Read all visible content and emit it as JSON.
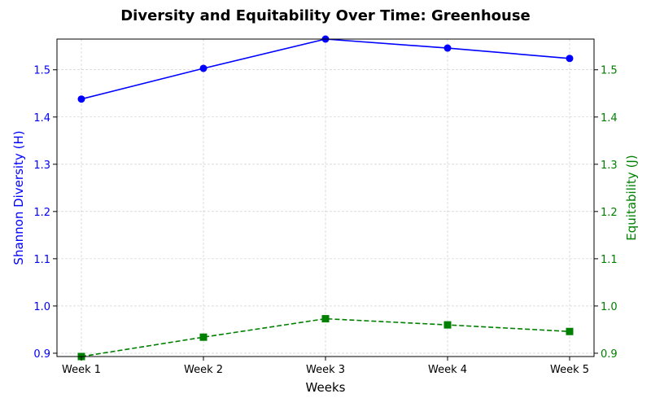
{
  "chart_data": {
    "type": "line",
    "title": "Diversity and Equitability Over Time: Greenhouse",
    "xlabel": "Weeks",
    "categories": [
      "Week 1",
      "Week 2",
      "Week 3",
      "Week 4",
      "Week 5"
    ],
    "grid": true,
    "series": [
      {
        "name": "Shannon Diversity (H)",
        "axis": "left",
        "values": [
          1.438,
          1.503,
          1.565,
          1.546,
          1.524
        ],
        "color": "#0000ff",
        "marker": "circle",
        "line_style": "solid"
      },
      {
        "name": "Equitability (J)",
        "axis": "right",
        "values": [
          0.893,
          0.934,
          0.973,
          0.96,
          0.946
        ],
        "color": "#008000",
        "marker": "square",
        "line_style": "dashed"
      }
    ],
    "y_left": {
      "label": "Shannon Diversity (H)",
      "range": [
        0.893,
        1.565
      ],
      "ticks": [
        "0.9",
        "1.0",
        "1.1",
        "1.2",
        "1.3",
        "1.4",
        "1.5"
      ],
      "color": "#0000ff"
    },
    "y_right": {
      "label": "Equitability (J)",
      "range": [
        0.893,
        1.565
      ],
      "ticks": [
        "0.9",
        "1.0",
        "1.1",
        "1.2",
        "1.3",
        "1.4",
        "1.5"
      ],
      "color": "#008000"
    }
  }
}
